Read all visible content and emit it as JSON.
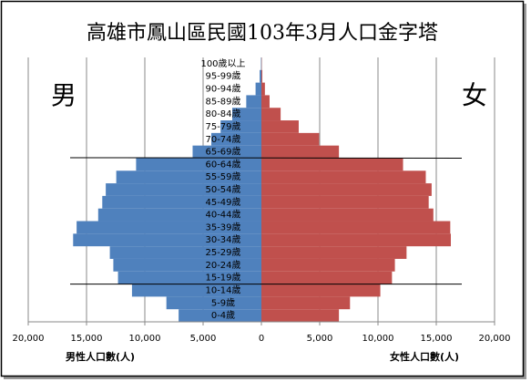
{
  "chart_data": {
    "type": "population-pyramid",
    "title": "高雄市鳳山區民國103年3月人口金字塔",
    "left_label": "男",
    "right_label": "女",
    "x_label_left": "男性人口數(人)",
    "x_label_right": "女性人口數(人)",
    "categories": [
      "0-4歲",
      "5-9歲",
      "10-14歲",
      "15-19歲",
      "20-24歲",
      "25-29歲",
      "30-34歲",
      "35-39歲",
      "40-44歲",
      "45-49歲",
      "50-54歲",
      "55-59歲",
      "60-64歲",
      "65-69歲",
      "70-74歲",
      "75-79歲",
      "80-84歲",
      "85-89歲",
      "90-94歲",
      "95-99歲",
      "100歲以上"
    ],
    "series": [
      {
        "name": "男",
        "side": "left",
        "color": "#4f81bd",
        "values": [
          7100,
          8150,
          11100,
          12300,
          12700,
          13000,
          16150,
          15850,
          14000,
          13650,
          13350,
          12450,
          10750,
          5900,
          4300,
          3500,
          2500,
          1300,
          500,
          150,
          30
        ]
      },
      {
        "name": "女",
        "side": "right",
        "color": "#c0504d",
        "values": [
          6650,
          7600,
          10200,
          11200,
          11450,
          12450,
          16250,
          16200,
          14750,
          14350,
          14600,
          14100,
          12150,
          6650,
          4950,
          3200,
          1650,
          700,
          300,
          80,
          20
        ]
      }
    ],
    "xlim": [
      -20000,
      20000
    ],
    "xticks": [
      {
        "value": -20000,
        "label": "20,000"
      },
      {
        "value": -15000,
        "label": "15,000"
      },
      {
        "value": -10000,
        "label": "10,000"
      },
      {
        "value": -5000,
        "label": "5,000"
      },
      0,
      {
        "value": 5000,
        "label": "5,000"
      },
      {
        "value": 10000,
        "label": "10,000"
      },
      {
        "value": 15000,
        "label": "15,000"
      },
      {
        "value": 20000,
        "label": "20,000"
      }
    ],
    "grid": true
  }
}
